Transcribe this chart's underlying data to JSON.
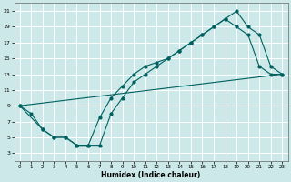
{
  "xlabel": "Humidex (Indice chaleur)",
  "bg_color": "#cce8e8",
  "grid_color": "#ffffff",
  "line_color": "#006060",
  "xlim": [
    -0.5,
    23.5
  ],
  "ylim": [
    2,
    22
  ],
  "xticks": [
    0,
    1,
    2,
    3,
    4,
    5,
    6,
    7,
    8,
    9,
    10,
    11,
    12,
    13,
    14,
    15,
    16,
    17,
    18,
    19,
    20,
    21,
    22,
    23
  ],
  "yticks": [
    3,
    5,
    7,
    9,
    11,
    13,
    15,
    17,
    19,
    21
  ],
  "line1_x": [
    0,
    1,
    2,
    3,
    4,
    5,
    6,
    7,
    8,
    9,
    10,
    11,
    12,
    13,
    14,
    15,
    16,
    17,
    18,
    19,
    20,
    21,
    22,
    23
  ],
  "line1_y": [
    9,
    8,
    6,
    5,
    5,
    4,
    4,
    4,
    8,
    10,
    12,
    13,
    14,
    15,
    16,
    17,
    18,
    19,
    20,
    19,
    18,
    14,
    13,
    13
  ],
  "line2_x": [
    0,
    2,
    3,
    4,
    5,
    6,
    7,
    8,
    9,
    10,
    11,
    12,
    13,
    14,
    15,
    16,
    17,
    18,
    19,
    20,
    21,
    22,
    23
  ],
  "line2_y": [
    9,
    6,
    5,
    5,
    4,
    4,
    7.5,
    10,
    11.5,
    13,
    14,
    14.5,
    15,
    16,
    17,
    18,
    19,
    20,
    21,
    19,
    18,
    14,
    13
  ],
  "line3_x": [
    0,
    23
  ],
  "line3_y": [
    9,
    13
  ]
}
